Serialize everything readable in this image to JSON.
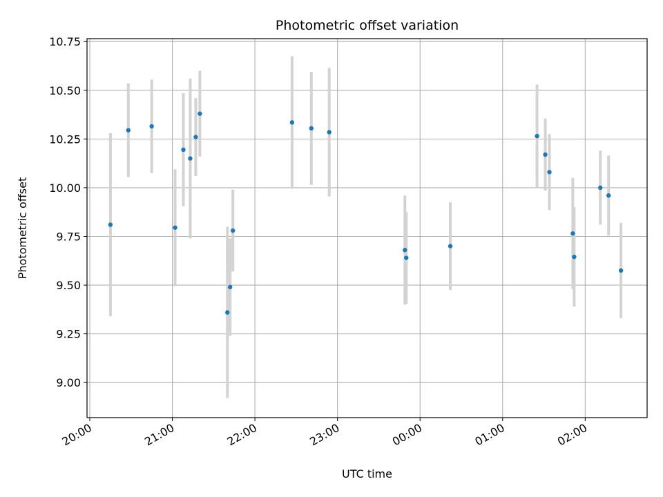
{
  "chart_data": {
    "type": "scatter",
    "title": "Photometric offset variation",
    "xlabel": "UTC time",
    "ylabel": "Photometric offset",
    "x_is_time": true,
    "xlim": [
      "19:58",
      "02:45"
    ],
    "ylim": [
      8.82,
      10.765
    ],
    "x_ticks": [
      "20:00",
      "21:00",
      "22:00",
      "23:00",
      "00:00",
      "01:00",
      "02:00"
    ],
    "y_ticks": [
      9.0,
      9.25,
      9.5,
      9.75,
      10.0,
      10.25,
      10.5,
      10.75
    ],
    "y_tick_labels": [
      "9.00",
      "9.25",
      "9.50",
      "9.75",
      "10.00",
      "10.25",
      "10.50",
      "10.75"
    ],
    "grid": true,
    "colors": {
      "point": "#1f77b4",
      "errorbar": "#d3d3d3",
      "grid": "#b0b0b0"
    },
    "points": [
      {
        "time": "20:15",
        "y": 9.81,
        "err": 0.47
      },
      {
        "time": "20:28",
        "y": 10.295,
        "err": 0.24
      },
      {
        "time": "20:45",
        "y": 10.315,
        "err": 0.24
      },
      {
        "time": "21:02",
        "y": 9.795,
        "err": 0.3
      },
      {
        "time": "21:08",
        "y": 10.195,
        "err": 0.29
      },
      {
        "time": "21:13",
        "y": 10.15,
        "err": 0.41
      },
      {
        "time": "21:17",
        "y": 10.26,
        "err": 0.2
      },
      {
        "time": "21:20",
        "y": 10.38,
        "err": 0.22
      },
      {
        "time": "21:40",
        "y": 9.36,
        "err": 0.44
      },
      {
        "time": "21:42",
        "y": 9.49,
        "err": 0.25
      },
      {
        "time": "21:44",
        "y": 9.78,
        "err": 0.21
      },
      {
        "time": "22:27",
        "y": 10.335,
        "err": 0.34
      },
      {
        "time": "22:41",
        "y": 10.305,
        "err": 0.29
      },
      {
        "time": "22:54",
        "y": 10.285,
        "err": 0.33
      },
      {
        "time": "23:49",
        "y": 9.68,
        "err": 0.28
      },
      {
        "time": "23:50",
        "y": 9.64,
        "err": 0.235
      },
      {
        "time": "00:22",
        "y": 9.7,
        "err": 0.225
      },
      {
        "time": "01:25",
        "y": 10.265,
        "err": 0.265
      },
      {
        "time": "01:31",
        "y": 10.17,
        "err": 0.185
      },
      {
        "time": "01:34",
        "y": 10.08,
        "err": 0.195
      },
      {
        "time": "01:51",
        "y": 9.765,
        "err": 0.285
      },
      {
        "time": "01:52",
        "y": 9.645,
        "err": 0.255
      },
      {
        "time": "02:11",
        "y": 10.0,
        "err": 0.19
      },
      {
        "time": "02:17",
        "y": 9.96,
        "err": 0.205
      },
      {
        "time": "02:26",
        "y": 9.575,
        "err": 0.245
      }
    ]
  }
}
